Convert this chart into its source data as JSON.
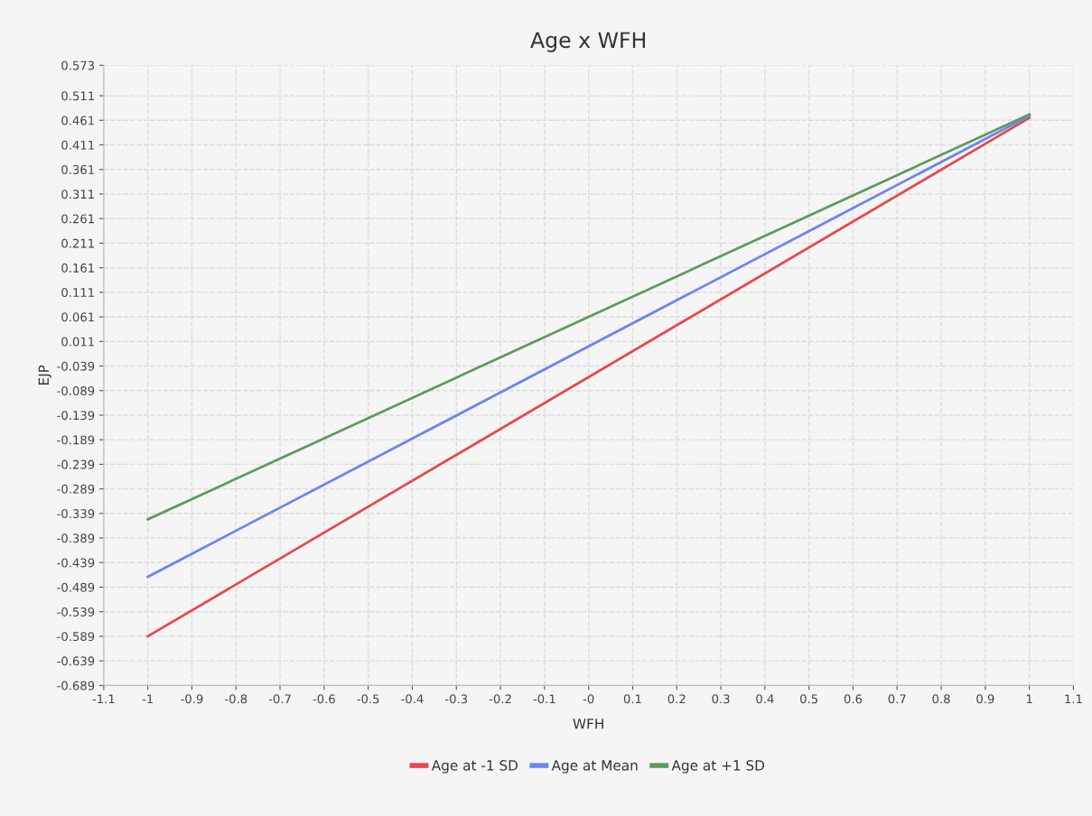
{
  "chart_data": {
    "type": "line",
    "title": "Age x WFH",
    "xlabel": "WFH",
    "ylabel": "EJP",
    "x": [
      -1,
      1
    ],
    "series": [
      {
        "name": "Age at -1 SD",
        "color": "#e8474c",
        "values": [
          -0.589,
          0.466
        ]
      },
      {
        "name": "Age at Mean",
        "color": "#6b86ee",
        "values": [
          -0.468,
          0.47
        ]
      },
      {
        "name": "Age at +1 SD",
        "color": "#5e9a5e",
        "values": [
          -0.351,
          0.473
        ]
      }
    ],
    "xlim": [
      -1.1,
      1.1
    ],
    "xticks": [
      -1.1,
      -1,
      -0.9,
      -0.8,
      -0.7,
      -0.6,
      -0.5,
      -0.4,
      -0.3,
      -0.2,
      -0.1,
      {
        "value": 0,
        "label": "-0"
      },
      0.1,
      0.2,
      0.3,
      0.4,
      0.5,
      0.6,
      0.7,
      0.8,
      0.9,
      1,
      1.1
    ],
    "ylim": [
      -0.689,
      0.573
    ],
    "yticks": [
      -0.689,
      -0.639,
      -0.589,
      -0.539,
      -0.489,
      -0.439,
      -0.389,
      -0.339,
      -0.289,
      -0.239,
      -0.189,
      -0.139,
      -0.089,
      -0.039,
      0.011,
      0.061,
      0.111,
      0.161,
      0.211,
      0.261,
      0.311,
      0.361,
      0.411,
      0.461,
      0.511,
      0.573
    ],
    "grid": true,
    "legend": "bottom",
    "marker": "none",
    "line_style": "solid"
  }
}
